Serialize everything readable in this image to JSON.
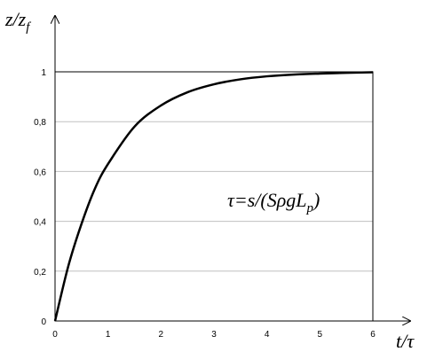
{
  "chart_data": {
    "type": "line",
    "xlabel": "t/τ",
    "ylabel_main": "z/z",
    "ylabel_sub": "f",
    "annotation": {
      "prefix": "τ=s/(SρgL",
      "sub": "p",
      "suffix": ")"
    },
    "xlim": [
      0,
      6
    ],
    "ylim": [
      0,
      1
    ],
    "x_ticks": [
      "0",
      "1",
      "2",
      "3",
      "4",
      "5",
      "6"
    ],
    "y_ticks": [
      "0",
      "0,2",
      "0,4",
      "0,6",
      "0,8",
      "1"
    ],
    "grid": "horizontal",
    "series": [
      {
        "x": [
          0,
          0.25,
          0.5,
          0.75,
          1,
          1.5,
          2,
          2.5,
          3,
          3.5,
          4,
          4.5,
          5,
          5.5,
          6
        ],
        "y": [
          0,
          0.22,
          0.39,
          0.53,
          0.63,
          0.78,
          0.865,
          0.918,
          0.95,
          0.97,
          0.982,
          0.989,
          0.993,
          0.996,
          0.998
        ]
      }
    ]
  }
}
